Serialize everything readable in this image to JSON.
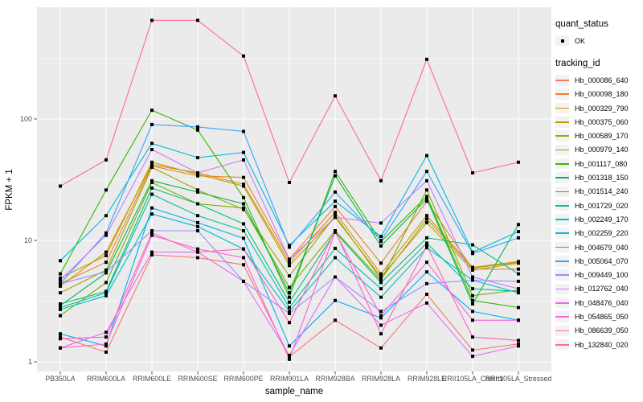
{
  "chart_data": {
    "type": "line",
    "title": "",
    "xlabel": "sample_name",
    "ylabel": "FPKM + 1",
    "y_scale": "log10",
    "y_ticks": [
      1,
      10,
      100
    ],
    "y_tick_labels": [
      "1",
      "10",
      "100"
    ],
    "y_minor_ticks": [
      3.1623,
      31.623,
      316.23
    ],
    "ylim": [
      1,
      800
    ],
    "grid": true,
    "legend_position": "right",
    "marker": "small-black-square",
    "categories": [
      "PB350LA",
      "RRIM600LA",
      "RRIM600LE",
      "RRIM600SE",
      "RRIM600PE",
      "RRIM901LA",
      "RRIM928BA",
      "RRIM928LA",
      "RRIM928LE",
      "RRII105LA_Control",
      "RRII105LA_Stressed"
    ],
    "series": [
      {
        "name": "Hb_000086_640",
        "color": "#F8766D",
        "values": [
          1.6,
          1.2,
          7.6,
          7.2,
          6.3,
          1.1,
          2.2,
          1.3,
          3.6,
          1.25,
          1.4
        ]
      },
      {
        "name": "Hb_000098_180",
        "color": "#EA8331",
        "values": [
          4.4,
          6.6,
          41,
          34,
          33,
          7.0,
          19,
          6.5,
          21,
          5.8,
          5.8
        ]
      },
      {
        "name": "Hb_000329_790",
        "color": "#D89000",
        "values": [
          4.2,
          8.0,
          42,
          36,
          29,
          6.6,
          17,
          5.3,
          16,
          6.0,
          6.7
        ]
      },
      {
        "name": "Hb_000375_060",
        "color": "#C09B00",
        "values": [
          4.9,
          7.5,
          44,
          35,
          28,
          6.2,
          15.5,
          5.0,
          14,
          5.7,
          6.5
        ]
      },
      {
        "name": "Hb_000589_170",
        "color": "#A3A500",
        "values": [
          3.7,
          5.7,
          40,
          26,
          18,
          5.1,
          16,
          4.8,
          15,
          5.9,
          6.6
        ]
      },
      {
        "name": "Hb_000979_140",
        "color": "#7CAE00",
        "values": [
          2.4,
          4.5,
          30,
          20,
          18.5,
          4.1,
          12,
          4.7,
          26,
          3.5,
          3.9
        ]
      },
      {
        "name": "Hb_001117_080",
        "color": "#39B600",
        "values": [
          5.3,
          26,
          118,
          81,
          22.5,
          3.4,
          37,
          9.8,
          23,
          3.2,
          2.8
        ]
      },
      {
        "name": "Hb_001318_150",
        "color": "#00BB4E",
        "values": [
          2.9,
          5.4,
          31,
          25,
          20,
          3.7,
          34,
          9.0,
          22,
          3.0,
          13.5
        ]
      },
      {
        "name": "Hb_001514_240",
        "color": "#00BF7D",
        "values": [
          3.0,
          3.8,
          27,
          20,
          13.7,
          3.1,
          11.7,
          4.5,
          10.5,
          9.2,
          5.3
        ]
      },
      {
        "name": "Hb_001729_020",
        "color": "#00C1A3",
        "values": [
          2.8,
          3.7,
          24,
          16,
          12,
          2.8,
          8.6,
          4.0,
          9.5,
          4.0,
          3.8
        ]
      },
      {
        "name": "Hb_002249_170",
        "color": "#00BFC4",
        "values": [
          2.7,
          3.5,
          16.5,
          13,
          8.5,
          2.6,
          7.2,
          3.4,
          8.7,
          4.7,
          3.7
        ]
      },
      {
        "name": "Hb_002259_220",
        "color": "#00BAE0",
        "values": [
          6.8,
          16,
          63,
          48,
          53,
          9.1,
          21,
          10.8,
          50,
          8.0,
          11.8
        ]
      },
      {
        "name": "Hb_004679_040",
        "color": "#00B0F6",
        "values": [
          1.7,
          1.35,
          18.5,
          14,
          10.4,
          1.35,
          3.2,
          2.3,
          5.5,
          2.6,
          2.2
        ]
      },
      {
        "name": "Hb_005064_070",
        "color": "#35A2FF",
        "values": [
          4.4,
          11.5,
          90,
          86,
          79,
          8.8,
          25,
          10.0,
          37,
          7.8,
          10.5
        ]
      },
      {
        "name": "Hb_009449_100",
        "color": "#9590FF",
        "values": [
          4.4,
          5.5,
          12,
          12,
          4.6,
          2.5,
          5.0,
          2.6,
          4.4,
          4.7,
          4.6
        ]
      },
      {
        "name": "Hb_012762_040",
        "color": "#C77CFF",
        "values": [
          4.7,
          11,
          56,
          36,
          46,
          7.0,
          15.5,
          13.9,
          31,
          5.0,
          4.0
        ]
      },
      {
        "name": "Hb_048476_040",
        "color": "#E76BF3",
        "values": [
          1.3,
          1.75,
          8.0,
          8.0,
          4.6,
          1.13,
          5.0,
          2.0,
          3.05,
          1.11,
          1.35
        ]
      },
      {
        "name": "Hb_054865_050",
        "color": "#FA62DB",
        "values": [
          1.3,
          1.4,
          11,
          8.5,
          7.2,
          1.05,
          11.7,
          2.4,
          6.6,
          2.2,
          2.2
        ]
      },
      {
        "name": "Hb_086639_050",
        "color": "#FF62BC",
        "values": [
          1.55,
          1.6,
          11.5,
          8.0,
          8.5,
          2.1,
          12,
          1.7,
          9.0,
          1.6,
          1.5
        ]
      },
      {
        "name": "Hb_132840_020",
        "color": "#FF6A98",
        "values": [
          28,
          46,
          650,
          650,
          330,
          30,
          155,
          31,
          310,
          36,
          44
        ]
      }
    ]
  },
  "legend": {
    "quant_status_title": "quant_status",
    "quant_status_items": [
      {
        "label": "OK",
        "marker": "black-point"
      }
    ],
    "tracking_title": "tracking_id"
  },
  "colors": {
    "panel_bg": "#EBEBEB",
    "grid": "#FFFFFF",
    "point": "#000000",
    "tick_label": "#4D4D4D",
    "axis_title": "#000000",
    "legend_key_bg": "#F2F2F2"
  }
}
